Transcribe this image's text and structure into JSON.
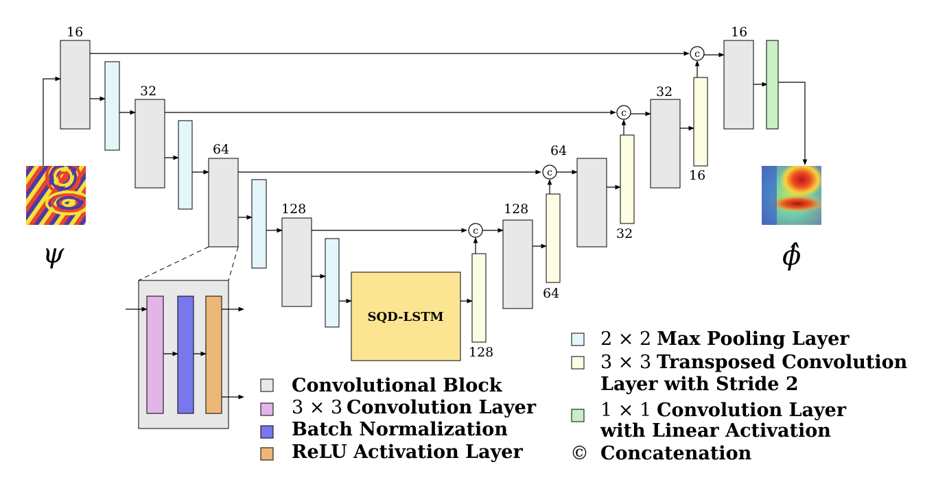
{
  "colors": {
    "conv_block": "#e8e8e8",
    "conv_layer": "#e3b4e8",
    "batch_norm": "#7878ec",
    "relu": "#edb877",
    "max_pool": "#e3f7fb",
    "transposed_conv": "#fdfde4",
    "one_by_one_conv": "#c8f0c4",
    "lstm": "#fbe592"
  },
  "encoder": {
    "conv1_channels": "16",
    "conv2_channels": "32",
    "conv3_channels": "64",
    "conv4_channels": "128"
  },
  "bottleneck": {
    "label": "SQD-LSTM"
  },
  "decoder": {
    "up1_channels": "128",
    "conv1_channels": "128",
    "up2_channels": "64",
    "conv2_channels": "64",
    "up3_channels": "32",
    "conv3_channels": "32",
    "up4_channels": "16",
    "conv4_channels": "16"
  },
  "concat_symbol": "c",
  "input_symbol": "ψ",
  "output_symbol": "ϕ̂",
  "legend": {
    "conv_block": "Convolutional Block",
    "conv_layer_dim": "3 × 3",
    "conv_layer": "Convolution Layer",
    "batch_norm": "Batch Normalization",
    "relu": "ReLU Activation Layer",
    "max_pool_dim": "2 × 2",
    "max_pool": "Max Pooling Layer",
    "transposed_conv_dim": "3 × 3",
    "transposed_conv_line1": "Transposed Convolution",
    "transposed_conv_line2": "Layer with Stride 2",
    "one_by_one_dim": "1 × 1",
    "one_by_one_line1": "Convolution Layer",
    "one_by_one_line2": "with Linear Activation",
    "concat_mark": "©",
    "concat": "Concatenation"
  }
}
